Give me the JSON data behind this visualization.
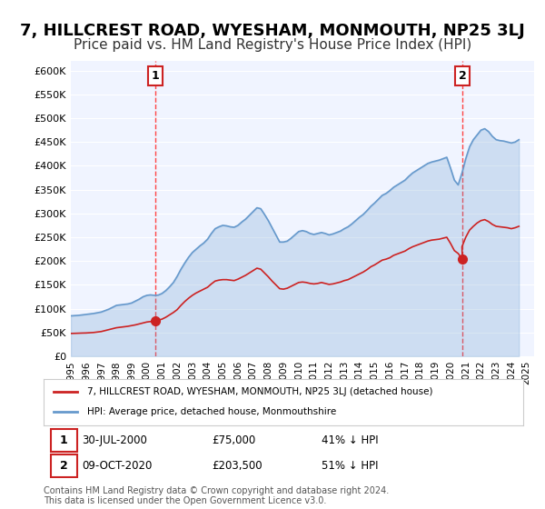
{
  "title": "7, HILLCREST ROAD, WYESHAM, MONMOUTH, NP25 3LJ",
  "subtitle": "Price paid vs. HM Land Registry's House Price Index (HPI)",
  "title_fontsize": 13,
  "subtitle_fontsize": 11,
  "background_color": "#ffffff",
  "plot_bg_color": "#f0f4ff",
  "grid_color": "#ffffff",
  "ylim": [
    0,
    620000
  ],
  "yticks": [
    0,
    50000,
    100000,
    150000,
    200000,
    250000,
    300000,
    350000,
    400000,
    450000,
    500000,
    550000,
    600000
  ],
  "ytick_labels": [
    "£0",
    "£50K",
    "£100K",
    "£150K",
    "£200K",
    "£250K",
    "£300K",
    "£350K",
    "£400K",
    "£450K",
    "£500K",
    "£550K",
    "£600K"
  ],
  "hpi_color": "#6699cc",
  "price_color": "#cc2222",
  "marker_color_1": "#cc2222",
  "marker_color_2": "#cc2222",
  "vline_color": "#ff4444",
  "annotation_box_color": "#cc2222",
  "transaction_1": {
    "date_num": 2000.58,
    "price": 75000,
    "label": "1"
  },
  "transaction_2": {
    "date_num": 2020.78,
    "price": 203500,
    "label": "2"
  },
  "legend_line1": "7, HILLCREST ROAD, WYESHAM, MONMOUTH, NP25 3LJ (detached house)",
  "legend_line2": "HPI: Average price, detached house, Monmouthshire",
  "table_row1": [
    "1",
    "30-JUL-2000",
    "£75,000",
    "41% ↓ HPI"
  ],
  "table_row2": [
    "2",
    "09-OCT-2020",
    "£203,500",
    "51% ↓ HPI"
  ],
  "footer": "Contains HM Land Registry data © Crown copyright and database right 2024.\nThis data is licensed under the Open Government Licence v3.0.",
  "hpi_data": {
    "years": [
      1995.0,
      1995.25,
      1995.5,
      1995.75,
      1996.0,
      1996.25,
      1996.5,
      1996.75,
      1997.0,
      1997.25,
      1997.5,
      1997.75,
      1998.0,
      1998.25,
      1998.5,
      1998.75,
      1999.0,
      1999.25,
      1999.5,
      1999.75,
      2000.0,
      2000.25,
      2000.5,
      2000.75,
      2001.0,
      2001.25,
      2001.5,
      2001.75,
      2002.0,
      2002.25,
      2002.5,
      2002.75,
      2003.0,
      2003.25,
      2003.5,
      2003.75,
      2004.0,
      2004.25,
      2004.5,
      2004.75,
      2005.0,
      2005.25,
      2005.5,
      2005.75,
      2006.0,
      2006.25,
      2006.5,
      2006.75,
      2007.0,
      2007.25,
      2007.5,
      2007.75,
      2008.0,
      2008.25,
      2008.5,
      2008.75,
      2009.0,
      2009.25,
      2009.5,
      2009.75,
      2010.0,
      2010.25,
      2010.5,
      2010.75,
      2011.0,
      2011.25,
      2011.5,
      2011.75,
      2012.0,
      2012.25,
      2012.5,
      2012.75,
      2013.0,
      2013.25,
      2013.5,
      2013.75,
      2014.0,
      2014.25,
      2014.5,
      2014.75,
      2015.0,
      2015.25,
      2015.5,
      2015.75,
      2016.0,
      2016.25,
      2016.5,
      2016.75,
      2017.0,
      2017.25,
      2017.5,
      2017.75,
      2018.0,
      2018.25,
      2018.5,
      2018.75,
      2019.0,
      2019.25,
      2019.5,
      2019.75,
      2020.0,
      2020.25,
      2020.5,
      2020.75,
      2021.0,
      2021.25,
      2021.5,
      2021.75,
      2022.0,
      2022.25,
      2022.5,
      2022.75,
      2023.0,
      2023.25,
      2023.5,
      2023.75,
      2024.0,
      2024.25,
      2024.5
    ],
    "values": [
      85000,
      85500,
      86000,
      87000,
      88000,
      89000,
      90000,
      91500,
      93000,
      96000,
      99000,
      103000,
      107000,
      108000,
      109000,
      110000,
      112000,
      116000,
      120000,
      125000,
      128000,
      129000,
      128000,
      128500,
      132000,
      138000,
      146000,
      155000,
      168000,
      183000,
      196000,
      208000,
      218000,
      225000,
      232000,
      238000,
      246000,
      258000,
      268000,
      272000,
      275000,
      274000,
      272000,
      271000,
      275000,
      282000,
      288000,
      296000,
      304000,
      312000,
      310000,
      298000,
      285000,
      270000,
      255000,
      240000,
      240000,
      242000,
      248000,
      255000,
      262000,
      264000,
      262000,
      258000,
      256000,
      258000,
      260000,
      258000,
      255000,
      257000,
      260000,
      263000,
      268000,
      272000,
      278000,
      285000,
      292000,
      298000,
      306000,
      315000,
      322000,
      330000,
      338000,
      342000,
      348000,
      355000,
      360000,
      365000,
      370000,
      378000,
      385000,
      390000,
      395000,
      400000,
      405000,
      408000,
      410000,
      412000,
      415000,
      418000,
      395000,
      370000,
      360000,
      385000,
      415000,
      440000,
      455000,
      465000,
      475000,
      478000,
      472000,
      462000,
      455000,
      453000,
      452000,
      450000,
      448000,
      450000,
      455000
    ]
  },
  "price_paid_data": {
    "years": [
      1995.0,
      1995.25,
      1995.5,
      1995.75,
      1996.0,
      1996.25,
      1996.5,
      1996.75,
      1997.0,
      1997.25,
      1997.5,
      1997.75,
      1998.0,
      1998.25,
      1998.5,
      1998.75,
      1999.0,
      1999.25,
      1999.5,
      1999.75,
      2000.0,
      2000.25,
      2000.5,
      2000.58,
      2000.75,
      2001.0,
      2001.25,
      2001.5,
      2001.75,
      2002.0,
      2002.25,
      2002.5,
      2002.75,
      2003.0,
      2003.25,
      2003.5,
      2003.75,
      2004.0,
      2004.25,
      2004.5,
      2004.75,
      2005.0,
      2005.25,
      2005.5,
      2005.75,
      2006.0,
      2006.25,
      2006.5,
      2006.75,
      2007.0,
      2007.25,
      2007.5,
      2007.75,
      2008.0,
      2008.25,
      2008.5,
      2008.75,
      2009.0,
      2009.25,
      2009.5,
      2009.75,
      2010.0,
      2010.25,
      2010.5,
      2010.75,
      2011.0,
      2011.25,
      2011.5,
      2011.75,
      2012.0,
      2012.25,
      2012.5,
      2012.75,
      2013.0,
      2013.25,
      2013.5,
      2013.75,
      2014.0,
      2014.25,
      2014.5,
      2014.75,
      2015.0,
      2015.25,
      2015.5,
      2015.75,
      2016.0,
      2016.25,
      2016.5,
      2016.75,
      2017.0,
      2017.25,
      2017.5,
      2017.75,
      2018.0,
      2018.25,
      2018.5,
      2018.75,
      2019.0,
      2019.25,
      2019.5,
      2019.75,
      2020.0,
      2020.25,
      2020.5,
      2020.78,
      2020.75,
      2021.0,
      2021.25,
      2021.5,
      2021.75,
      2022.0,
      2022.25,
      2022.5,
      2022.75,
      2023.0,
      2023.25,
      2023.5,
      2023.75,
      2024.0,
      2024.25,
      2024.5
    ],
    "values": [
      48000,
      48200,
      48500,
      48800,
      49000,
      49500,
      50000,
      51000,
      52000,
      54000,
      56000,
      58000,
      60000,
      61000,
      62000,
      63000,
      64500,
      66000,
      68000,
      70000,
      72000,
      73000,
      74000,
      75000,
      76000,
      78000,
      82000,
      87000,
      92000,
      98000,
      107000,
      115000,
      122000,
      128000,
      133000,
      137000,
      141000,
      145000,
      152000,
      158000,
      160000,
      161000,
      161000,
      160000,
      159000,
      162000,
      166000,
      170000,
      175000,
      180000,
      185000,
      183000,
      175000,
      167000,
      158000,
      150000,
      142000,
      141000,
      143000,
      147000,
      151000,
      155000,
      156000,
      155000,
      153000,
      152000,
      153000,
      155000,
      153000,
      151000,
      152000,
      154000,
      156000,
      159000,
      161000,
      165000,
      169000,
      173000,
      177000,
      182000,
      188000,
      192000,
      197000,
      202000,
      204000,
      207000,
      212000,
      215000,
      218000,
      221000,
      226000,
      230000,
      233000,
      236000,
      239000,
      242000,
      244000,
      245000,
      246000,
      248000,
      250000,
      237000,
      222000,
      216000,
      203500,
      230000,
      250000,
      265000,
      273000,
      280000,
      285000,
      287000,
      283000,
      277000,
      273000,
      272000,
      271000,
      270000,
      268000,
      270000,
      273000
    ]
  }
}
